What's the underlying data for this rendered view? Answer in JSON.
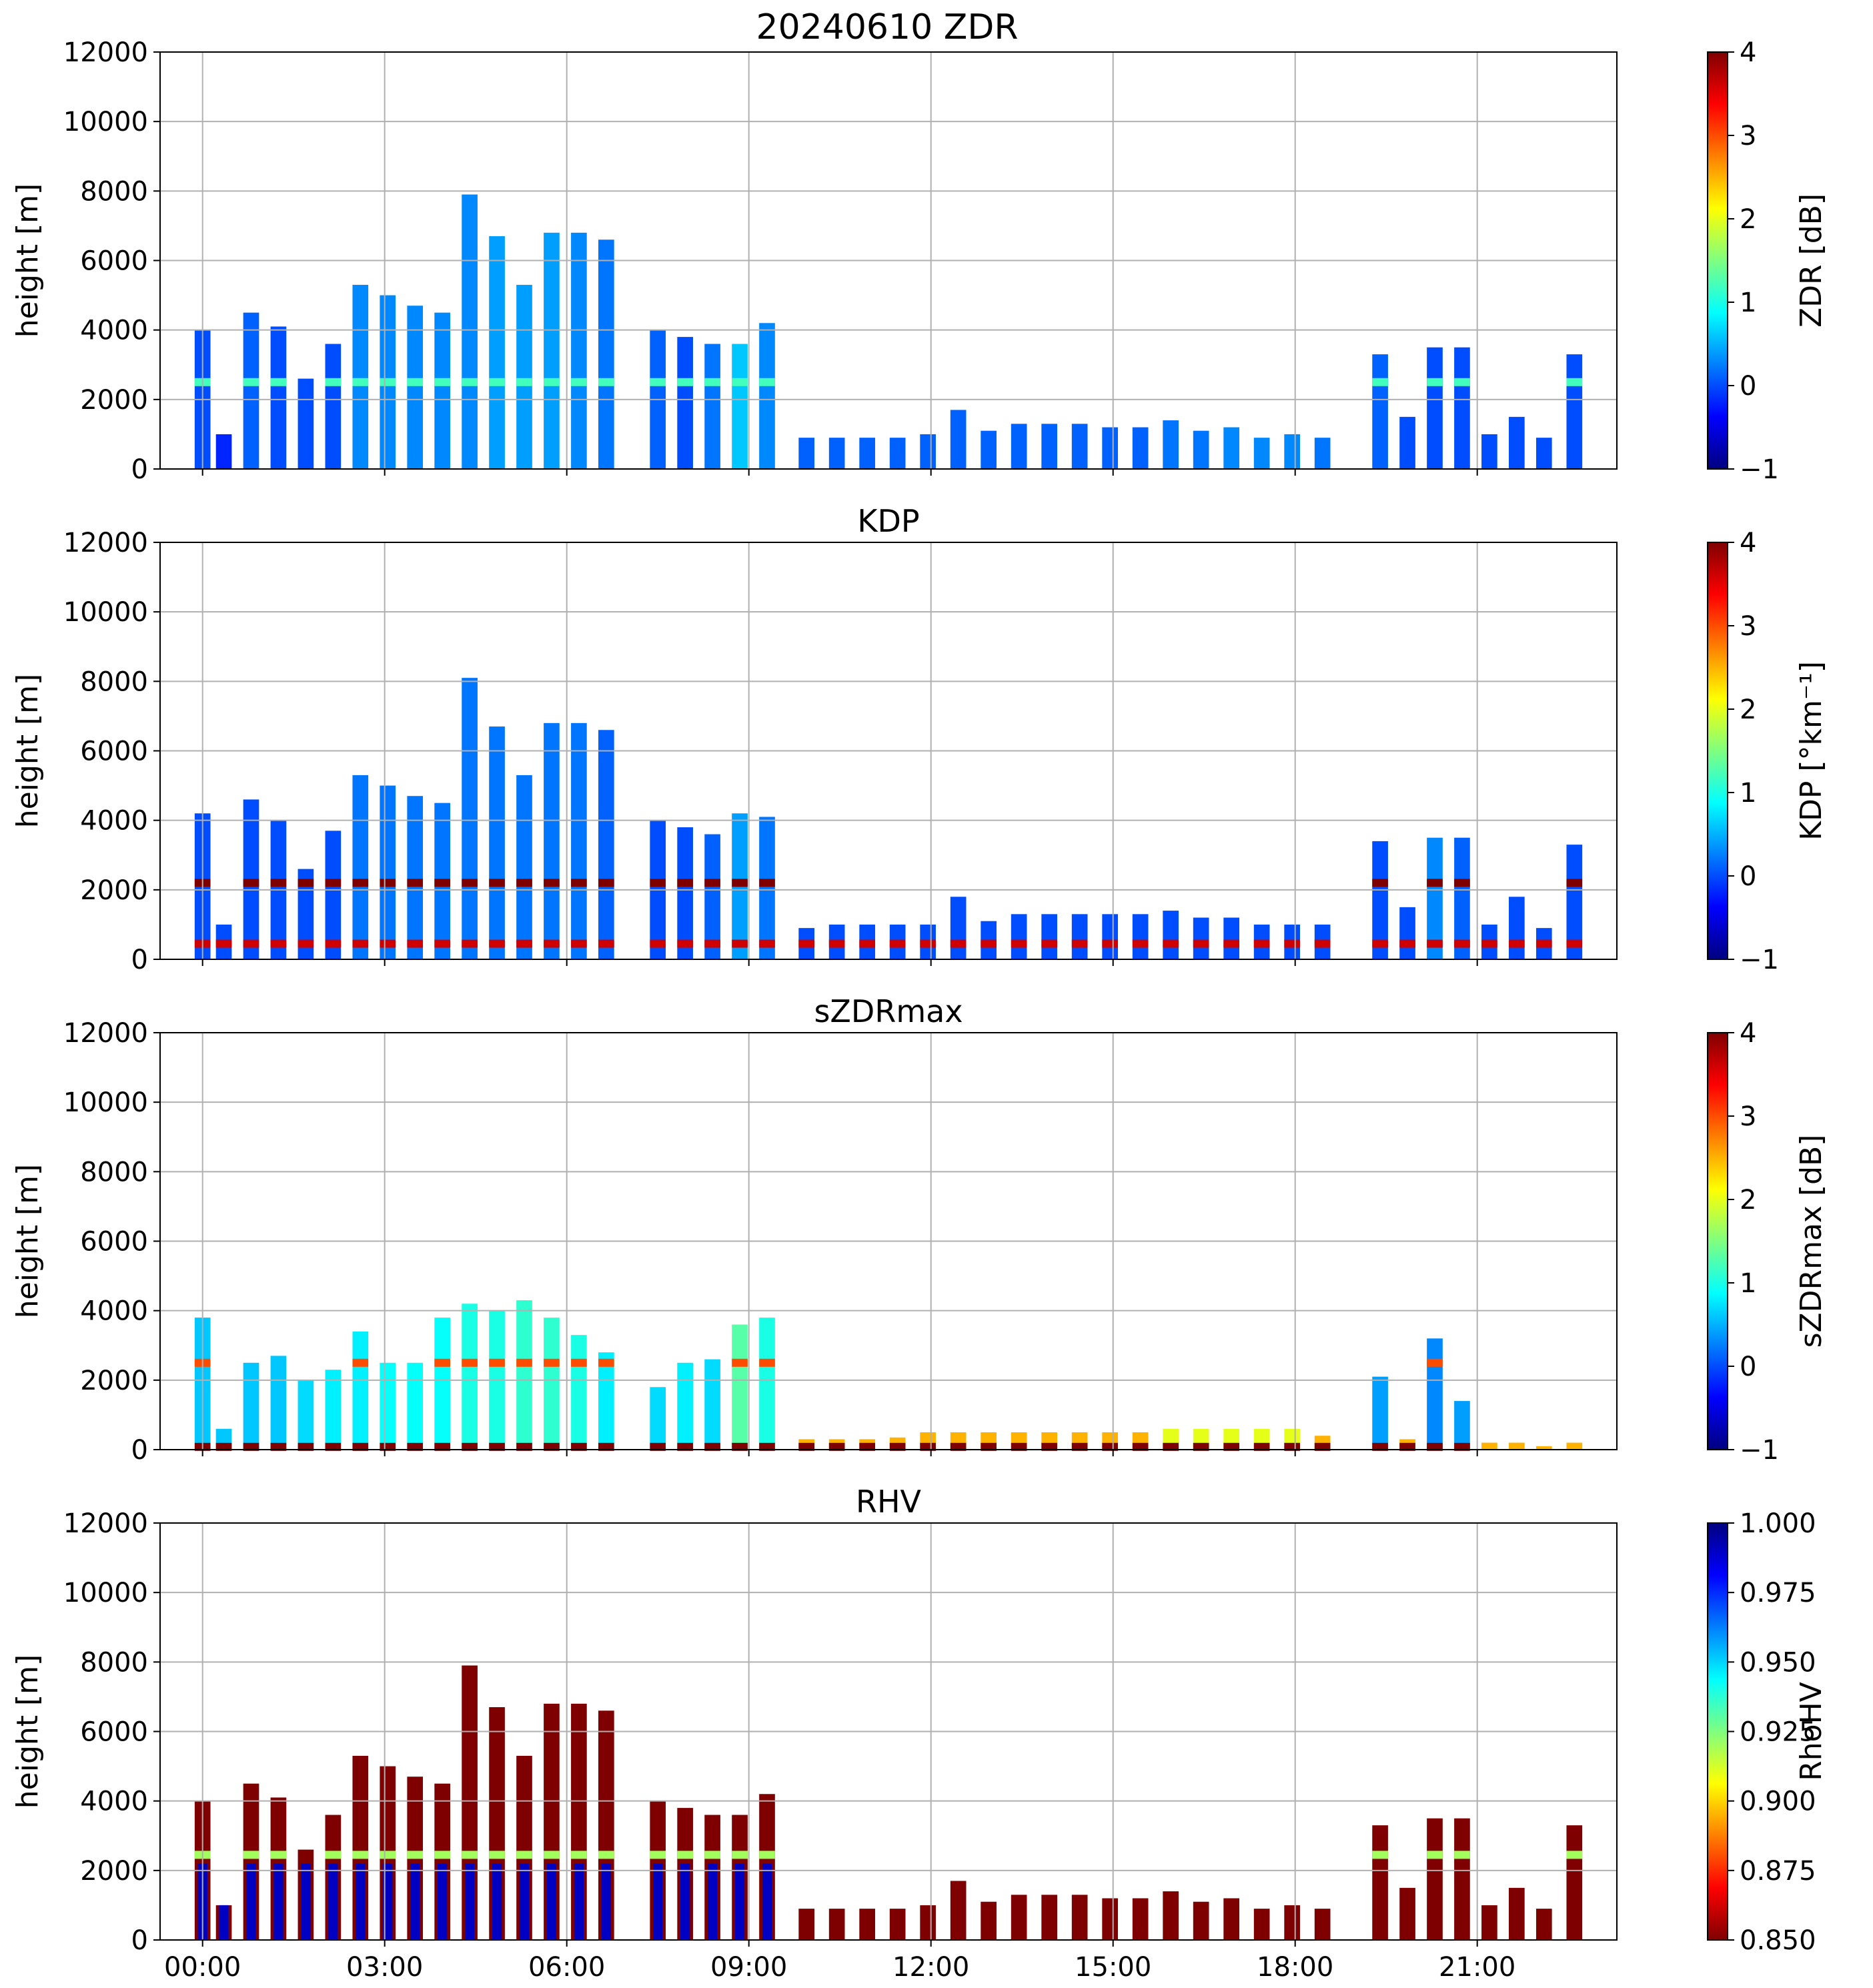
{
  "figure_title": "20240610 ZDR",
  "x_tick_labels": [
    "00:00",
    "03:00",
    "06:00",
    "09:00",
    "12:00",
    "15:00",
    "18:00",
    "21:00"
  ],
  "colors": {
    "jet": [
      "#00007f",
      "#0000ff",
      "#007fff",
      "#00ffff",
      "#7fff7f",
      "#ffff00",
      "#ff7f00",
      "#ff0000",
      "#7f0000"
    ],
    "grid": "#b0b0b0"
  },
  "chart_data": [
    {
      "type": "heatmap",
      "title": "",
      "ylabel": "height [m]",
      "xlim": [
        -0.7,
        23.3
      ],
      "ylim": [
        0,
        12000
      ],
      "yticks": [
        0,
        2000,
        4000,
        6000,
        8000,
        10000,
        12000
      ],
      "colorbar": {
        "label": "ZDR [dB]",
        "range": [
          -1,
          4
        ],
        "ticks": [
          -1,
          0,
          1,
          2,
          3,
          4
        ],
        "reversed": false
      },
      "profiles": [
        {
          "t": 0.0,
          "top": 4000,
          "v": 0.0
        },
        {
          "t": 0.35,
          "top": 1000,
          "v": -0.2
        },
        {
          "t": 0.8,
          "top": 4500,
          "v": 0.1
        },
        {
          "t": 1.25,
          "top": 4100,
          "v": 0.0
        },
        {
          "t": 1.7,
          "top": 2600,
          "v": 0.0
        },
        {
          "t": 2.15,
          "top": 3600,
          "v": 0.0
        },
        {
          "t": 2.6,
          "top": 5300,
          "v": 0.3
        },
        {
          "t": 3.05,
          "top": 5000,
          "v": 0.3
        },
        {
          "t": 3.5,
          "top": 4700,
          "v": 0.3
        },
        {
          "t": 3.95,
          "top": 4500,
          "v": 0.3
        },
        {
          "t": 4.4,
          "top": 7900,
          "v": 0.3
        },
        {
          "t": 4.85,
          "top": 6700,
          "v": 0.4
        },
        {
          "t": 5.3,
          "top": 5300,
          "v": 0.4
        },
        {
          "t": 5.75,
          "top": 6800,
          "v": 0.4
        },
        {
          "t": 6.2,
          "top": 6800,
          "v": 0.3
        },
        {
          "t": 6.65,
          "top": 6600,
          "v": 0.2
        },
        {
          "t": 7.5,
          "top": 4000,
          "v": 0.1
        },
        {
          "t": 7.95,
          "top": 3800,
          "v": 0.0
        },
        {
          "t": 8.4,
          "top": 3600,
          "v": 0.2
        },
        {
          "t": 8.85,
          "top": 3600,
          "v": 0.6
        },
        {
          "t": 9.3,
          "top": 4200,
          "v": 0.3
        },
        {
          "t": 9.95,
          "top": 900,
          "v": 0.1
        },
        {
          "t": 10.45,
          "top": 900,
          "v": 0.1
        },
        {
          "t": 10.95,
          "top": 900,
          "v": 0.1
        },
        {
          "t": 11.45,
          "top": 900,
          "v": 0.1
        },
        {
          "t": 11.95,
          "top": 1000,
          "v": 0.1
        },
        {
          "t": 12.45,
          "top": 1700,
          "v": 0.1
        },
        {
          "t": 12.95,
          "top": 1100,
          "v": 0.1
        },
        {
          "t": 13.45,
          "top": 1300,
          "v": 0.1
        },
        {
          "t": 13.95,
          "top": 1300,
          "v": 0.1
        },
        {
          "t": 14.45,
          "top": 1300,
          "v": 0.1
        },
        {
          "t": 14.95,
          "top": 1200,
          "v": 0.1
        },
        {
          "t": 15.45,
          "top": 1200,
          "v": 0.1
        },
        {
          "t": 15.95,
          "top": 1400,
          "v": 0.2
        },
        {
          "t": 16.45,
          "top": 1100,
          "v": 0.2
        },
        {
          "t": 16.95,
          "top": 1200,
          "v": 0.3
        },
        {
          "t": 17.45,
          "top": 900,
          "v": 0.3
        },
        {
          "t": 17.95,
          "top": 1000,
          "v": 0.3
        },
        {
          "t": 18.45,
          "top": 900,
          "v": 0.2
        },
        {
          "t": 19.4,
          "top": 3300,
          "v": 0.1
        },
        {
          "t": 19.85,
          "top": 1500,
          "v": 0.0
        },
        {
          "t": 20.3,
          "top": 3500,
          "v": 0.0
        },
        {
          "t": 20.75,
          "top": 3500,
          "v": 0.0
        },
        {
          "t": 21.2,
          "top": 1000,
          "v": 0.0
        },
        {
          "t": 21.65,
          "top": 1500,
          "v": 0.0
        },
        {
          "t": 22.1,
          "top": 900,
          "v": 0.0
        },
        {
          "t": 22.6,
          "top": 3300,
          "v": 0.0
        }
      ],
      "bands": [
        {
          "y": 2500,
          "v": 1.2
        }
      ]
    },
    {
      "type": "heatmap",
      "title": "KDP",
      "ylabel": "height [m]",
      "xlim": [
        -0.7,
        23.3
      ],
      "ylim": [
        0,
        12000
      ],
      "yticks": [
        0,
        2000,
        4000,
        6000,
        8000,
        10000,
        12000
      ],
      "colorbar": {
        "label": "KDP [°km⁻¹]",
        "range": [
          -1,
          4
        ],
        "ticks": [
          -1,
          0,
          1,
          2,
          3,
          4
        ],
        "reversed": false
      },
      "profiles": [
        {
          "t": 0.0,
          "top": 4200,
          "v": 0.0
        },
        {
          "t": 0.35,
          "top": 1000,
          "v": 0.0
        },
        {
          "t": 0.8,
          "top": 4600,
          "v": 0.0
        },
        {
          "t": 1.25,
          "top": 4000,
          "v": 0.0
        },
        {
          "t": 1.7,
          "top": 2600,
          "v": 0.0
        },
        {
          "t": 2.15,
          "top": 3700,
          "v": 0.0
        },
        {
          "t": 2.6,
          "top": 5300,
          "v": 0.2
        },
        {
          "t": 3.05,
          "top": 5000,
          "v": 0.2
        },
        {
          "t": 3.5,
          "top": 4700,
          "v": 0.2
        },
        {
          "t": 3.95,
          "top": 4500,
          "v": 0.2
        },
        {
          "t": 4.4,
          "top": 8100,
          "v": 0.2
        },
        {
          "t": 4.85,
          "top": 6700,
          "v": 0.2
        },
        {
          "t": 5.3,
          "top": 5300,
          "v": 0.2
        },
        {
          "t": 5.75,
          "top": 6800,
          "v": 0.2
        },
        {
          "t": 6.2,
          "top": 6800,
          "v": 0.2
        },
        {
          "t": 6.65,
          "top": 6600,
          "v": 0.1
        },
        {
          "t": 7.5,
          "top": 4000,
          "v": 0.0
        },
        {
          "t": 7.95,
          "top": 3800,
          "v": 0.0
        },
        {
          "t": 8.4,
          "top": 3600,
          "v": 0.1
        },
        {
          "t": 8.85,
          "top": 4200,
          "v": 0.4
        },
        {
          "t": 9.3,
          "top": 4100,
          "v": 0.2
        },
        {
          "t": 9.95,
          "top": 900,
          "v": 0.0
        },
        {
          "t": 10.45,
          "top": 1000,
          "v": 0.0
        },
        {
          "t": 10.95,
          "top": 1000,
          "v": 0.0
        },
        {
          "t": 11.45,
          "top": 1000,
          "v": 0.0
        },
        {
          "t": 11.95,
          "top": 1000,
          "v": 0.0
        },
        {
          "t": 12.45,
          "top": 1800,
          "v": 0.0
        },
        {
          "t": 12.95,
          "top": 1100,
          "v": 0.0
        },
        {
          "t": 13.45,
          "top": 1300,
          "v": 0.0
        },
        {
          "t": 13.95,
          "top": 1300,
          "v": 0.0
        },
        {
          "t": 14.45,
          "top": 1300,
          "v": 0.0
        },
        {
          "t": 14.95,
          "top": 1300,
          "v": 0.0
        },
        {
          "t": 15.45,
          "top": 1300,
          "v": 0.0
        },
        {
          "t": 15.95,
          "top": 1400,
          "v": 0.0
        },
        {
          "t": 16.45,
          "top": 1200,
          "v": 0.0
        },
        {
          "t": 16.95,
          "top": 1200,
          "v": 0.0
        },
        {
          "t": 17.45,
          "top": 1000,
          "v": 0.0
        },
        {
          "t": 17.95,
          "top": 1000,
          "v": 0.0
        },
        {
          "t": 18.45,
          "top": 1000,
          "v": 0.0
        },
        {
          "t": 19.4,
          "top": 3400,
          "v": 0.0
        },
        {
          "t": 19.85,
          "top": 1500,
          "v": 0.0
        },
        {
          "t": 20.3,
          "top": 3500,
          "v": 0.3
        },
        {
          "t": 20.75,
          "top": 3500,
          "v": 0.1
        },
        {
          "t": 21.2,
          "top": 1000,
          "v": 0.0
        },
        {
          "t": 21.65,
          "top": 1800,
          "v": 0.0
        },
        {
          "t": 22.1,
          "top": 900,
          "v": 0.0
        },
        {
          "t": 22.6,
          "top": 3300,
          "v": 0.0
        }
      ],
      "bands": [
        {
          "y": 2200,
          "v": 4.0
        },
        {
          "y": 450,
          "v": 3.6
        }
      ]
    },
    {
      "type": "heatmap",
      "title": "sZDRmax",
      "ylabel": "height [m]",
      "xlim": [
        -0.7,
        23.3
      ],
      "ylim": [
        0,
        12000
      ],
      "yticks": [
        0,
        2000,
        4000,
        6000,
        8000,
        10000,
        12000
      ],
      "colorbar": {
        "label": "sZDRmax [dB]",
        "range": [
          -1,
          4
        ],
        "ticks": [
          -1,
          0,
          1,
          2,
          3,
          4
        ],
        "reversed": false
      },
      "profiles": [
        {
          "t": 0.0,
          "top": 3800,
          "v": 0.6
        },
        {
          "t": 0.35,
          "top": 600,
          "v": 0.6
        },
        {
          "t": 0.8,
          "top": 2500,
          "v": 0.6
        },
        {
          "t": 1.25,
          "top": 2700,
          "v": 0.6
        },
        {
          "t": 1.7,
          "top": 2000,
          "v": 0.7
        },
        {
          "t": 2.15,
          "top": 2300,
          "v": 0.8
        },
        {
          "t": 2.6,
          "top": 3400,
          "v": 0.8
        },
        {
          "t": 3.05,
          "top": 2500,
          "v": 0.9
        },
        {
          "t": 3.5,
          "top": 2500,
          "v": 0.9
        },
        {
          "t": 3.95,
          "top": 3800,
          "v": 0.9
        },
        {
          "t": 4.4,
          "top": 4200,
          "v": 1.0
        },
        {
          "t": 4.85,
          "top": 4000,
          "v": 1.0
        },
        {
          "t": 5.3,
          "top": 4300,
          "v": 1.1
        },
        {
          "t": 5.75,
          "top": 3800,
          "v": 1.1
        },
        {
          "t": 6.2,
          "top": 3300,
          "v": 1.0
        },
        {
          "t": 6.65,
          "top": 2800,
          "v": 0.8
        },
        {
          "t": 7.5,
          "top": 1800,
          "v": 0.7
        },
        {
          "t": 7.95,
          "top": 2500,
          "v": 0.8
        },
        {
          "t": 8.4,
          "top": 2600,
          "v": 0.7
        },
        {
          "t": 8.85,
          "top": 3600,
          "v": 1.3
        },
        {
          "t": 9.3,
          "top": 3800,
          "v": 1.0
        },
        {
          "t": 9.95,
          "top": 300,
          "v": 2.5
        },
        {
          "t": 10.45,
          "top": 300,
          "v": 2.5
        },
        {
          "t": 10.95,
          "top": 300,
          "v": 2.5
        },
        {
          "t": 11.45,
          "top": 350,
          "v": 2.5
        },
        {
          "t": 11.95,
          "top": 500,
          "v": 2.5
        },
        {
          "t": 12.45,
          "top": 500,
          "v": 2.5
        },
        {
          "t": 12.95,
          "top": 500,
          "v": 2.5
        },
        {
          "t": 13.45,
          "top": 500,
          "v": 2.5
        },
        {
          "t": 13.95,
          "top": 500,
          "v": 2.5
        },
        {
          "t": 14.45,
          "top": 500,
          "v": 2.5
        },
        {
          "t": 14.95,
          "top": 500,
          "v": 2.5
        },
        {
          "t": 15.45,
          "top": 500,
          "v": 2.5
        },
        {
          "t": 15.95,
          "top": 600,
          "v": 2.0
        },
        {
          "t": 16.45,
          "top": 600,
          "v": 2.0
        },
        {
          "t": 16.95,
          "top": 600,
          "v": 2.0
        },
        {
          "t": 17.45,
          "top": 600,
          "v": 2.0
        },
        {
          "t": 17.95,
          "top": 600,
          "v": 2.0
        },
        {
          "t": 18.45,
          "top": 400,
          "v": 2.5
        },
        {
          "t": 19.4,
          "top": 2100,
          "v": 0.4
        },
        {
          "t": 19.85,
          "top": 300,
          "v": 2.5
        },
        {
          "t": 20.3,
          "top": 3200,
          "v": 0.3
        },
        {
          "t": 20.75,
          "top": 1400,
          "v": 0.4
        },
        {
          "t": 21.2,
          "top": 200,
          "v": 2.5
        },
        {
          "t": 21.65,
          "top": 200,
          "v": 2.5
        },
        {
          "t": 22.1,
          "top": 100,
          "v": 2.5
        },
        {
          "t": 22.6,
          "top": 200,
          "v": 2.5
        }
      ],
      "bands": [
        {
          "y": 2500,
          "v": 3.0
        },
        {
          "y": 80,
          "v": 4.0
        }
      ]
    },
    {
      "type": "heatmap",
      "title": "RHV",
      "ylabel": "height [m]",
      "xlim": [
        -0.7,
        23.3
      ],
      "ylim": [
        0,
        12000
      ],
      "yticks": [
        0,
        2000,
        4000,
        6000,
        8000,
        10000,
        12000
      ],
      "colorbar": {
        "label": "RhoHV",
        "range": [
          0.85,
          1.0
        ],
        "ticks": [
          0.85,
          0.875,
          0.9,
          0.925,
          0.95,
          0.975,
          1.0
        ],
        "tick_labels": [
          "0.850",
          "0.875",
          "0.900",
          "0.925",
          "0.950",
          "0.975",
          "1.000"
        ],
        "reversed": true
      },
      "profiles": [
        {
          "t": 0.0,
          "top": 4000,
          "v": 0.85
        },
        {
          "t": 0.35,
          "top": 1000,
          "v": 0.85
        },
        {
          "t": 0.8,
          "top": 4500,
          "v": 0.85
        },
        {
          "t": 1.25,
          "top": 4100,
          "v": 0.85
        },
        {
          "t": 1.7,
          "top": 2600,
          "v": 0.85
        },
        {
          "t": 2.15,
          "top": 3600,
          "v": 0.85
        },
        {
          "t": 2.6,
          "top": 5300,
          "v": 0.85
        },
        {
          "t": 3.05,
          "top": 5000,
          "v": 0.85
        },
        {
          "t": 3.5,
          "top": 4700,
          "v": 0.85
        },
        {
          "t": 3.95,
          "top": 4500,
          "v": 0.85
        },
        {
          "t": 4.4,
          "top": 7900,
          "v": 0.85
        },
        {
          "t": 4.85,
          "top": 6700,
          "v": 0.85
        },
        {
          "t": 5.3,
          "top": 5300,
          "v": 0.85
        },
        {
          "t": 5.75,
          "top": 6800,
          "v": 0.85
        },
        {
          "t": 6.2,
          "top": 6800,
          "v": 0.85
        },
        {
          "t": 6.65,
          "top": 6600,
          "v": 0.85
        },
        {
          "t": 7.5,
          "top": 4000,
          "v": 0.85
        },
        {
          "t": 7.95,
          "top": 3800,
          "v": 0.85
        },
        {
          "t": 8.4,
          "top": 3600,
          "v": 0.85
        },
        {
          "t": 8.85,
          "top": 3600,
          "v": 0.85
        },
        {
          "t": 9.3,
          "top": 4200,
          "v": 0.85
        },
        {
          "t": 9.95,
          "top": 900,
          "v": 0.85
        },
        {
          "t": 10.45,
          "top": 900,
          "v": 0.85
        },
        {
          "t": 10.95,
          "top": 900,
          "v": 0.85
        },
        {
          "t": 11.45,
          "top": 900,
          "v": 0.85
        },
        {
          "t": 11.95,
          "top": 1000,
          "v": 0.85
        },
        {
          "t": 12.45,
          "top": 1700,
          "v": 0.85
        },
        {
          "t": 12.95,
          "top": 1100,
          "v": 0.85
        },
        {
          "t": 13.45,
          "top": 1300,
          "v": 0.85
        },
        {
          "t": 13.95,
          "top": 1300,
          "v": 0.85
        },
        {
          "t": 14.45,
          "top": 1300,
          "v": 0.85
        },
        {
          "t": 14.95,
          "top": 1200,
          "v": 0.85
        },
        {
          "t": 15.45,
          "top": 1200,
          "v": 0.85
        },
        {
          "t": 15.95,
          "top": 1400,
          "v": 0.85
        },
        {
          "t": 16.45,
          "top": 1100,
          "v": 0.85
        },
        {
          "t": 16.95,
          "top": 1200,
          "v": 0.85
        },
        {
          "t": 17.45,
          "top": 900,
          "v": 0.85
        },
        {
          "t": 17.95,
          "top": 1000,
          "v": 0.85
        },
        {
          "t": 18.45,
          "top": 900,
          "v": 0.85
        },
        {
          "t": 19.4,
          "top": 3300,
          "v": 0.85
        },
        {
          "t": 19.85,
          "top": 1500,
          "v": 0.85
        },
        {
          "t": 20.3,
          "top": 3500,
          "v": 0.85
        },
        {
          "t": 20.75,
          "top": 3500,
          "v": 0.85
        },
        {
          "t": 21.2,
          "top": 1000,
          "v": 0.85
        },
        {
          "t": 21.65,
          "top": 1500,
          "v": 0.85
        },
        {
          "t": 22.1,
          "top": 900,
          "v": 0.85
        },
        {
          "t": 22.6,
          "top": 3300,
          "v": 0.85
        }
      ],
      "lower_layer": {
        "top": 2200,
        "t_end": 9.6,
        "v": 0.99
      },
      "bands": [
        {
          "y": 2450,
          "v": 0.92
        }
      ]
    }
  ]
}
